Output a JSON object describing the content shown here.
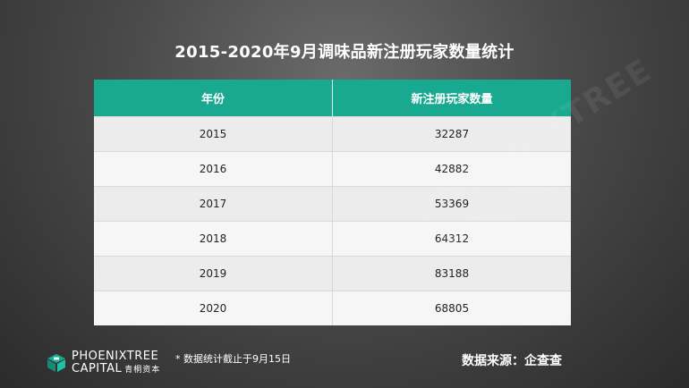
{
  "chart_data": {
    "type": "table",
    "title": "2015-2020年9月调味品新注册玩家数量统计",
    "columns": [
      "年份",
      "新注册玩家数量"
    ],
    "rows": [
      [
        "2015",
        "32287"
      ],
      [
        "2016",
        "42882"
      ],
      [
        "2017",
        "53369"
      ],
      [
        "2018",
        "64312"
      ],
      [
        "2019",
        "83188"
      ],
      [
        "2020",
        "68805"
      ]
    ]
  },
  "footer": {
    "logo_line1": "PHOENIXTREE",
    "logo_line2": "CAPITAL",
    "logo_cn": "青桐资本",
    "note": "* 数据统计截止于9月15日",
    "source": "数据来源：企查查"
  },
  "watermark": "PHOENIXTREE 青桐资本",
  "colors": {
    "header": "#19a890",
    "background": "#4a4a4a",
    "logo": "#19a890"
  }
}
